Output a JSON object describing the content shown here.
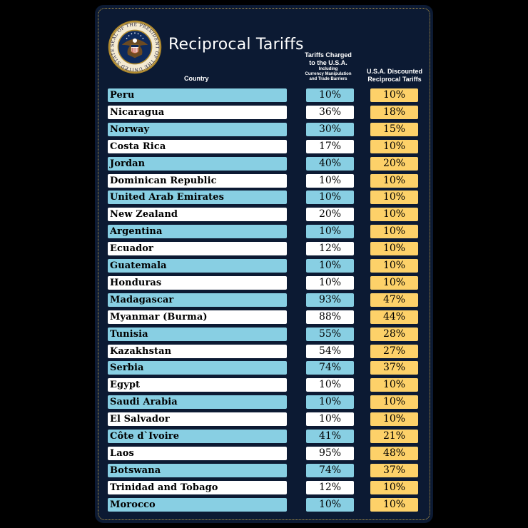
{
  "header": {
    "title": "Reciprocal Tariffs",
    "col_country": "Country",
    "col_charged_line1": "Tariffs Charged",
    "col_charged_line2": "to the U.S.A.",
    "col_charged_sub1": "Including",
    "col_charged_sub2": "Currency Manipulation",
    "col_charged_sub3": "and Trade Barriers",
    "col_discounted_line1": "U.S.A. Discounted",
    "col_discounted_line2": "Reciprocal Tariffs"
  },
  "seal": {
    "text": "SEAL OF THE PRESIDENT OF THE UNITED STATES"
  },
  "colors": {
    "background": "#000000",
    "panel": "#0c1a33",
    "country_blue": "#88cfe3",
    "country_white": "#ffffff",
    "discounted_gold": "#fdd169",
    "border_gold": "#c9a84c"
  },
  "chart_data": {
    "type": "table",
    "columns": [
      "Country",
      "Tariffs Charged to the U.S.A.",
      "U.S.A. Discounted Reciprocal Tariffs"
    ],
    "rows": [
      {
        "country": "Peru",
        "charged": "10%",
        "discounted": "10%"
      },
      {
        "country": "Nicaragua",
        "charged": "36%",
        "discounted": "18%"
      },
      {
        "country": "Norway",
        "charged": "30%",
        "discounted": "15%"
      },
      {
        "country": "Costa Rica",
        "charged": "17%",
        "discounted": "10%"
      },
      {
        "country": "Jordan",
        "charged": "40%",
        "discounted": "20%"
      },
      {
        "country": "Dominican Republic",
        "charged": "10%",
        "discounted": "10%"
      },
      {
        "country": "United Arab Emirates",
        "charged": "10%",
        "discounted": "10%"
      },
      {
        "country": "New Zealand",
        "charged": "20%",
        "discounted": "10%"
      },
      {
        "country": "Argentina",
        "charged": "10%",
        "discounted": "10%"
      },
      {
        "country": "Ecuador",
        "charged": "12%",
        "discounted": "10%"
      },
      {
        "country": "Guatemala",
        "charged": "10%",
        "discounted": "10%"
      },
      {
        "country": "Honduras",
        "charged": "10%",
        "discounted": "10%"
      },
      {
        "country": "Madagascar",
        "charged": "93%",
        "discounted": "47%"
      },
      {
        "country": "Myanmar (Burma)",
        "charged": "88%",
        "discounted": "44%"
      },
      {
        "country": "Tunisia",
        "charged": "55%",
        "discounted": "28%"
      },
      {
        "country": "Kazakhstan",
        "charged": "54%",
        "discounted": "27%"
      },
      {
        "country": "Serbia",
        "charged": "74%",
        "discounted": "37%"
      },
      {
        "country": "Egypt",
        "charged": "10%",
        "discounted": "10%"
      },
      {
        "country": "Saudi Arabia",
        "charged": "10%",
        "discounted": "10%"
      },
      {
        "country": "El Salvador",
        "charged": "10%",
        "discounted": "10%"
      },
      {
        "country": "Côte d`Ivoire",
        "charged": "41%",
        "discounted": "21%"
      },
      {
        "country": "Laos",
        "charged": "95%",
        "discounted": "48%"
      },
      {
        "country": "Botswana",
        "charged": "74%",
        "discounted": "37%"
      },
      {
        "country": "Trinidad and Tobago",
        "charged": "12%",
        "discounted": "10%"
      },
      {
        "country": "Morocco",
        "charged": "10%",
        "discounted": "10%"
      }
    ]
  }
}
